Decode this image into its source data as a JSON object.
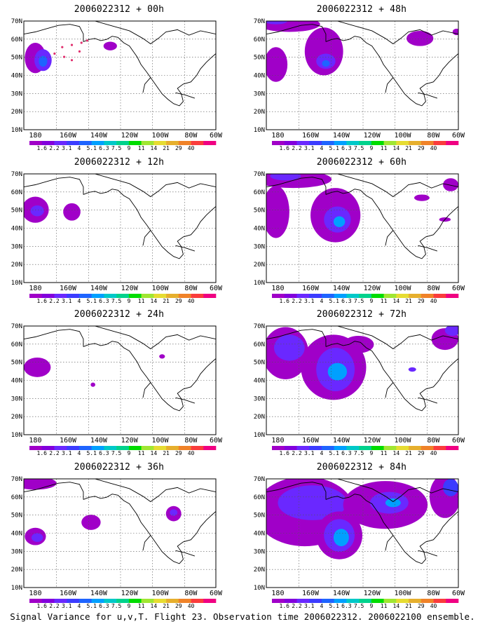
{
  "panels": [
    {
      "title": "2006022312 + 00h",
      "lead": "00h"
    },
    {
      "title": "2006022312 + 48h",
      "lead": "48h"
    },
    {
      "title": "2006022312 + 12h",
      "lead": "12h"
    },
    {
      "title": "2006022312 + 60h",
      "lead": "60h"
    },
    {
      "title": "2006022312 + 24h",
      "lead": "24h"
    },
    {
      "title": "2006022312 + 72h",
      "lead": "72h"
    },
    {
      "title": "2006022312 + 36h",
      "lead": "36h"
    },
    {
      "title": "2006022312 + 84h",
      "lead": "84h"
    }
  ],
  "lat_labels": [
    "70N",
    "60N",
    "50N",
    "40N",
    "30N",
    "20N",
    "10N"
  ],
  "lon_labels": [
    "180",
    "160W",
    "140W",
    "120W",
    "100W",
    "80W",
    "60W"
  ],
  "colorbar": {
    "labels": [
      "1.6",
      "2.2",
      "3.1",
      "4",
      "5.1",
      "6.3",
      "7.5",
      "9",
      "11",
      "14",
      "21",
      "29",
      "40"
    ],
    "colors": [
      "#a000c8",
      "#8200dc",
      "#6a28ff",
      "#3c3cff",
      "#1e64ff",
      "#00a0ff",
      "#00c8c8",
      "#00d28c",
      "#00dc00",
      "#a0e632",
      "#e6dc32",
      "#e6af2d",
      "#f08228",
      "#fa3c3c",
      "#f00082"
    ]
  },
  "caption": "Signal Variance for u,v,T. Flight 23. Observation time 2006022312. 2006022100 ensemble."
}
